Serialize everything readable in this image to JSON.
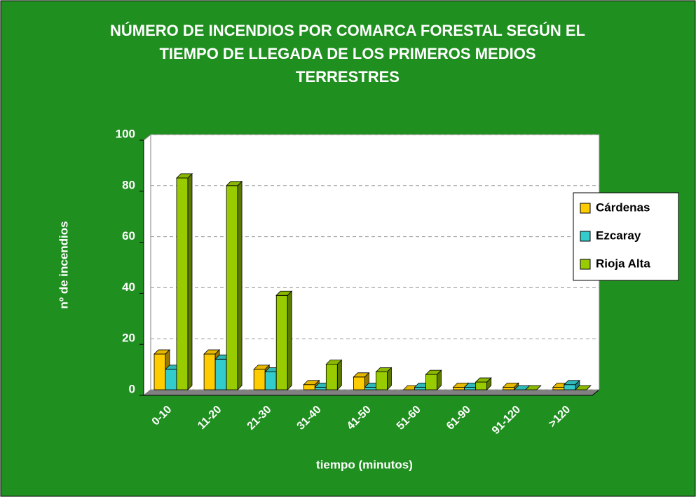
{
  "chart_data": {
    "type": "bar3d",
    "title": [
      "NÚMERO DE INCENDIOS POR COMARCA FORESTAL SEGÚN EL",
      "TIEMPO DE LLEGADA DE LOS PRIMEROS MEDIOS",
      "TERRESTRES"
    ],
    "xlabel": "tiempo (minutos)",
    "ylabel": "nº de incendios",
    "categories": [
      "0-10",
      "11-20",
      "21-30",
      "31-40",
      "41-50",
      "51-60",
      "61-90",
      "91-120",
      ">120"
    ],
    "series": [
      {
        "name": "Cárdenas",
        "color": "#ffcc00",
        "values": [
          14,
          14,
          8,
          2,
          5,
          0,
          1,
          1,
          1
        ]
      },
      {
        "name": "Ezcaray",
        "color": "#33cccc",
        "values": [
          8,
          12,
          7,
          1,
          1,
          1,
          1,
          0,
          2
        ]
      },
      {
        "name": "Rioja Alta",
        "color": "#99cc00",
        "values": [
          83,
          80,
          37,
          10,
          7,
          6,
          3,
          0,
          0
        ]
      }
    ],
    "ylim": [
      0,
      100
    ],
    "yticks": [
      0,
      20,
      40,
      60,
      80,
      100
    ],
    "grid": true,
    "legend": "right"
  }
}
